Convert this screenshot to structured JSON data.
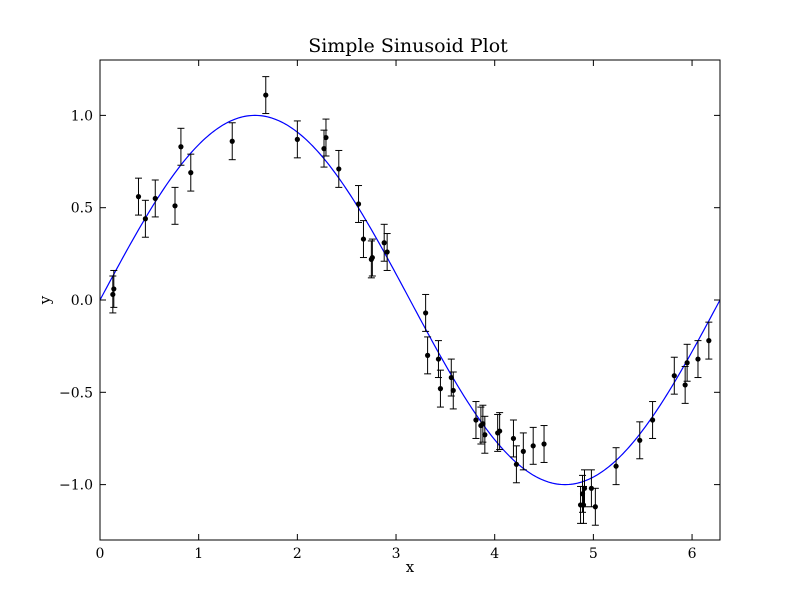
{
  "chart_data": {
    "type": "scatter",
    "title": "Simple Sinusoid Plot",
    "xlabel": "x",
    "ylabel": "y",
    "xlim": [
      0,
      6.2832
    ],
    "ylim": [
      -1.3,
      1.3
    ],
    "x_ticks": [
      0,
      1,
      2,
      3,
      4,
      5,
      6
    ],
    "x_tick_labels": [
      "0",
      "1",
      "2",
      "3",
      "4",
      "5",
      "6"
    ],
    "y_ticks": [
      -1.0,
      -0.5,
      0.0,
      0.5,
      1.0
    ],
    "y_tick_labels": [
      "−1.0",
      "−0.5",
      "0.0",
      "0.5",
      "1.0"
    ],
    "grid": false,
    "colors": {
      "curve": "#0000ff",
      "points": "#000000"
    },
    "series": [
      {
        "kind": "line",
        "function": "sin(x)",
        "x_range": [
          0,
          6.2832
        ]
      },
      {
        "kind": "errorbar",
        "error": 0.1,
        "points": [
          [
            0.13,
            0.03
          ],
          [
            0.14,
            0.06
          ],
          [
            0.39,
            0.56
          ],
          [
            0.46,
            0.44
          ],
          [
            0.56,
            0.55
          ],
          [
            0.76,
            0.51
          ],
          [
            0.82,
            0.83
          ],
          [
            0.92,
            0.69
          ],
          [
            1.34,
            0.86
          ],
          [
            1.68,
            1.11
          ],
          [
            2.0,
            0.87
          ],
          [
            2.27,
            0.82
          ],
          [
            2.29,
            0.88
          ],
          [
            2.42,
            0.71
          ],
          [
            2.62,
            0.52
          ],
          [
            2.67,
            0.33
          ],
          [
            2.75,
            0.22
          ],
          [
            2.76,
            0.23
          ],
          [
            2.88,
            0.31
          ],
          [
            2.91,
            0.26
          ],
          [
            3.3,
            -0.07
          ],
          [
            3.32,
            -0.3
          ],
          [
            3.43,
            -0.32
          ],
          [
            3.45,
            -0.48
          ],
          [
            3.56,
            -0.42
          ],
          [
            3.58,
            -0.49
          ],
          [
            3.81,
            -0.65
          ],
          [
            3.86,
            -0.68
          ],
          [
            3.88,
            -0.67
          ],
          [
            3.9,
            -0.73
          ],
          [
            4.03,
            -0.72
          ],
          [
            4.05,
            -0.71
          ],
          [
            4.19,
            -0.75
          ],
          [
            4.22,
            -0.89
          ],
          [
            4.29,
            -0.82
          ],
          [
            4.39,
            -0.79
          ],
          [
            4.5,
            -0.78
          ],
          [
            4.87,
            -1.11
          ],
          [
            4.89,
            -1.05
          ],
          [
            4.91,
            -1.02
          ],
          [
            4.9,
            -1.11
          ],
          [
            4.98,
            -1.02
          ],
          [
            5.02,
            -1.12
          ],
          [
            5.23,
            -0.9
          ],
          [
            5.47,
            -0.76
          ],
          [
            5.6,
            -0.65
          ],
          [
            5.82,
            -0.41
          ],
          [
            5.93,
            -0.46
          ],
          [
            5.95,
            -0.34
          ],
          [
            6.06,
            -0.32
          ],
          [
            6.17,
            -0.22
          ]
        ]
      }
    ]
  }
}
